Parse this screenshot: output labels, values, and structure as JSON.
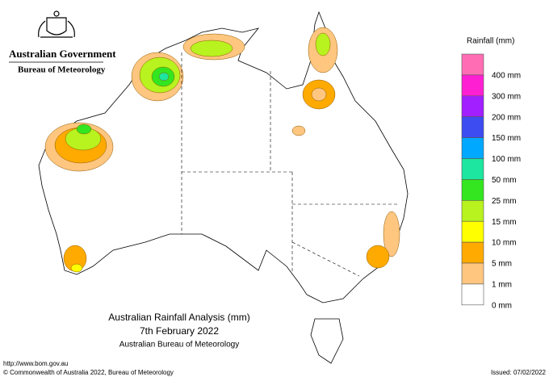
{
  "header": {
    "government": "Australian Government",
    "agency": "Bureau of Meteorology"
  },
  "legend": {
    "title": "Rainfall (mm)",
    "items": [
      {
        "label": "400 mm",
        "color": "#ff6eb4"
      },
      {
        "label": "300 mm",
        "color": "#ff1fd2"
      },
      {
        "label": "200 mm",
        "color": "#a21fff"
      },
      {
        "label": "150 mm",
        "color": "#3d4cf0"
      },
      {
        "label": "100 mm",
        "color": "#00a8ff"
      },
      {
        "label": "50 mm",
        "color": "#1de6a0"
      },
      {
        "label": "25 mm",
        "color": "#33e61f"
      },
      {
        "label": "15 mm",
        "color": "#b8f21f"
      },
      {
        "label": "10 mm",
        "color": "#ffff00"
      },
      {
        "label": "5 mm",
        "color": "#ffaa00"
      },
      {
        "label": "1 mm",
        "color": "#ffc680"
      },
      {
        "label": "0 mm",
        "color": "#ffffff"
      }
    ]
  },
  "caption": {
    "title": "Australian Rainfall Analysis (mm)",
    "date": "7th February 2022",
    "source": "Australian Bureau of Meteorology"
  },
  "footer": {
    "url": "http://www.bom.gov.au",
    "copyright": "© Commonwealth of Australia 2022, Bureau of Meteorology",
    "issued": "Issued: 07/02/2022"
  }
}
